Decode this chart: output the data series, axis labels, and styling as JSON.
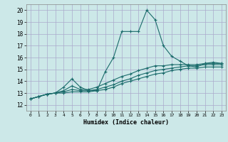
{
  "xlabel": "Humidex (Indice chaleur)",
  "xlim": [
    -0.5,
    23.5
  ],
  "ylim": [
    11.5,
    20.5
  ],
  "xticks": [
    0,
    1,
    2,
    3,
    4,
    5,
    6,
    7,
    8,
    9,
    10,
    11,
    12,
    13,
    14,
    15,
    16,
    17,
    18,
    19,
    20,
    21,
    22,
    23
  ],
  "yticks": [
    12,
    13,
    14,
    15,
    16,
    17,
    18,
    19,
    20
  ],
  "background_color": "#cce8e8",
  "grid_color": "#aaaacc",
  "line_color": "#1a6b6b",
  "lines": [
    {
      "x": [
        0,
        1,
        2,
        3,
        4,
        5,
        6,
        7,
        8,
        9,
        10,
        11,
        12,
        13,
        14,
        15,
        16,
        17,
        18,
        19,
        20,
        21,
        22,
        23
      ],
      "y": [
        12.5,
        12.7,
        12.9,
        13.0,
        13.5,
        14.2,
        13.5,
        13.2,
        13.2,
        14.8,
        16.0,
        18.2,
        18.2,
        18.2,
        20.0,
        19.2,
        17.0,
        16.1,
        15.7,
        15.3,
        15.2,
        15.5,
        15.6,
        15.5
      ]
    },
    {
      "x": [
        0,
        1,
        2,
        3,
        4,
        5,
        6,
        7,
        8,
        9,
        10,
        11,
        12,
        13,
        14,
        15,
        16,
        17,
        18,
        19,
        20,
        21,
        22,
        23
      ],
      "y": [
        12.5,
        12.7,
        12.9,
        13.0,
        13.2,
        13.6,
        13.3,
        13.3,
        13.5,
        13.8,
        14.1,
        14.4,
        14.6,
        14.9,
        15.1,
        15.3,
        15.3,
        15.4,
        15.4,
        15.4,
        15.4,
        15.5,
        15.5,
        15.5
      ]
    },
    {
      "x": [
        0,
        1,
        2,
        3,
        4,
        5,
        6,
        7,
        8,
        9,
        10,
        11,
        12,
        13,
        14,
        15,
        16,
        17,
        18,
        19,
        20,
        21,
        22,
        23
      ],
      "y": [
        12.5,
        12.7,
        12.9,
        13.0,
        13.1,
        13.3,
        13.2,
        13.2,
        13.3,
        13.5,
        13.7,
        14.0,
        14.2,
        14.5,
        14.7,
        14.9,
        15.0,
        15.1,
        15.2,
        15.3,
        15.3,
        15.4,
        15.4,
        15.4
      ]
    },
    {
      "x": [
        0,
        1,
        2,
        3,
        4,
        5,
        6,
        7,
        8,
        9,
        10,
        11,
        12,
        13,
        14,
        15,
        16,
        17,
        18,
        19,
        20,
        21,
        22,
        23
      ],
      "y": [
        12.5,
        12.7,
        12.9,
        13.0,
        13.0,
        13.1,
        13.1,
        13.1,
        13.2,
        13.3,
        13.5,
        13.8,
        14.0,
        14.2,
        14.4,
        14.6,
        14.7,
        14.9,
        15.0,
        15.1,
        15.1,
        15.2,
        15.2,
        15.2
      ]
    }
  ]
}
